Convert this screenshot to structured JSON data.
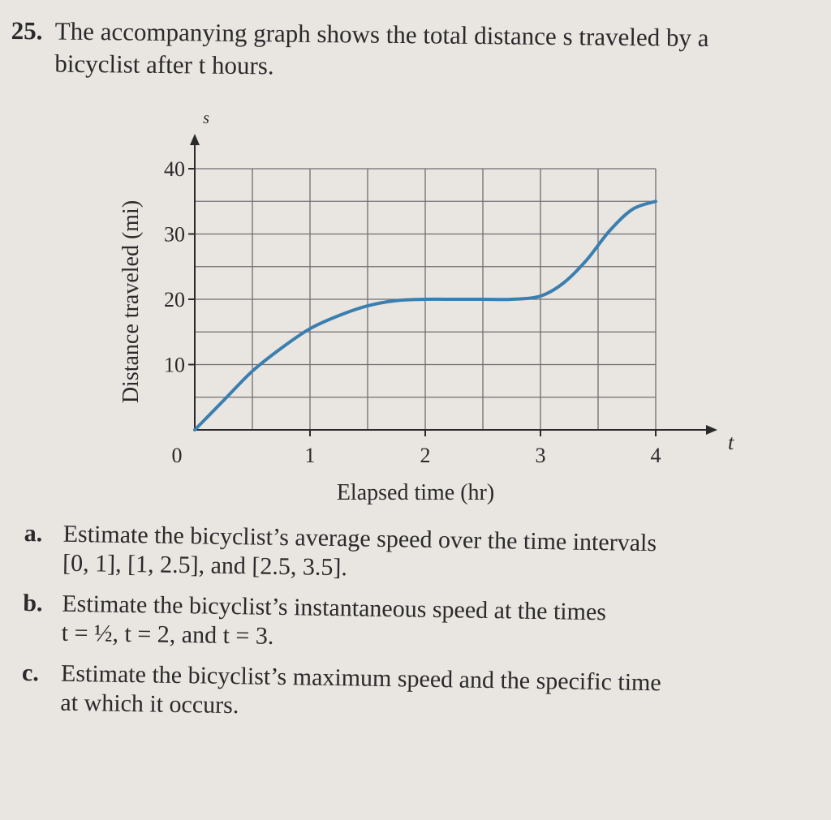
{
  "problem": {
    "number": "25.",
    "line1": "The accompanying graph shows the total distance s traveled by a",
    "line2": "bicyclist after t hours."
  },
  "chart_data": {
    "type": "line",
    "xlabel": "Elapsed time (hr)",
    "ylabel": "Distance traveled (mi)",
    "x_axis_symbol": "t",
    "y_axis_symbol": "s",
    "xlim": [
      0,
      4.6
    ],
    "ylim": [
      0,
      40
    ],
    "x_ticks": [
      "0",
      "1",
      "2",
      "3",
      "4"
    ],
    "y_ticks": [
      "10",
      "20",
      "30",
      "40"
    ],
    "grid": true,
    "grid_step_x": 0.5,
    "grid_step_y": 5,
    "line_color": "#3a7fb0",
    "series": [
      {
        "x": [
          0,
          0.25,
          0.5,
          0.75,
          1.0,
          1.25,
          1.5,
          1.75,
          2.0,
          2.25,
          2.5,
          2.75,
          3.0,
          3.2,
          3.4,
          3.6,
          3.8,
          4.0
        ],
        "values": [
          0,
          4.5,
          9,
          12.5,
          15.5,
          17.5,
          19,
          19.8,
          20,
          20,
          20,
          20,
          20.5,
          22.5,
          26,
          30.5,
          33.8,
          35
        ]
      }
    ]
  },
  "questions": {
    "a": {
      "label": "a.",
      "line1": "Estimate the bicyclist’s average speed over the time intervals",
      "line2": "[0, 1], [1, 2.5], and [2.5, 3.5]."
    },
    "b": {
      "label": "b.",
      "line1": "Estimate the bicyclist’s instantaneous speed at the times",
      "line2": "t = ½, t = 2, and t = 3."
    },
    "c": {
      "label": "c.",
      "line1": "Estimate the bicyclist’s maximum speed and the specific time",
      "line2": "at which it occurs."
    }
  }
}
